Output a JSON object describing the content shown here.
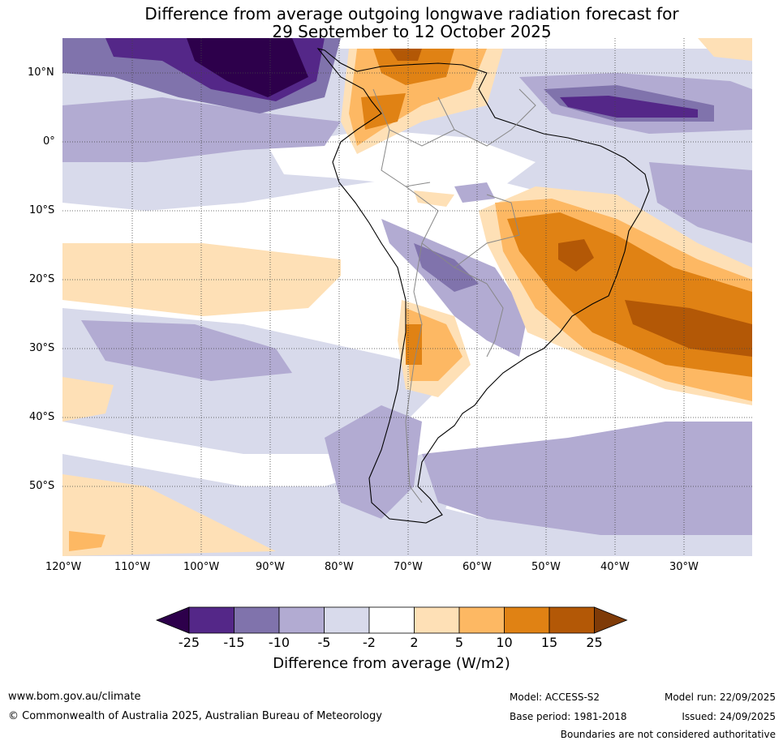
{
  "title_line1": "Difference from average outgoing longwave radiation forecast for",
  "title_line2": "29 September to 12 October 2025",
  "lat_labels": [
    "10°N",
    "0°",
    "10°S",
    "20°S",
    "30°S",
    "40°S",
    "50°S"
  ],
  "lon_labels": [
    "120°W",
    "110°W",
    "100°W",
    "90°W",
    "80°W",
    "70°W",
    "60°W",
    "50°W",
    "40°W",
    "30°W"
  ],
  "colorbar": {
    "ticks": [
      "-25",
      "-15",
      "-10",
      "-5",
      "-2",
      "2",
      "5",
      "10",
      "15",
      "25"
    ],
    "colors": [
      "#2d004b",
      "#542788",
      "#8073ac",
      "#b2abd2",
      "#d8daeb",
      "#ffffff",
      "#fee0b6",
      "#fdb863",
      "#e08214",
      "#b35806",
      "#7f3b08"
    ],
    "title": "Difference from average (W/m2)"
  },
  "footer": {
    "website": "www.bom.gov.au/climate",
    "copyright": "© Commonwealth of Australia 2025, Australian Bureau of Meteorology",
    "model": "Model: ACCESS-S2",
    "base_period": "Base period: 1981-2018",
    "model_run": "Model run: 22/09/2025",
    "issued": "Issued: 24/09/2025",
    "disclaimer": "Boundaries are not considered authoritative"
  }
}
